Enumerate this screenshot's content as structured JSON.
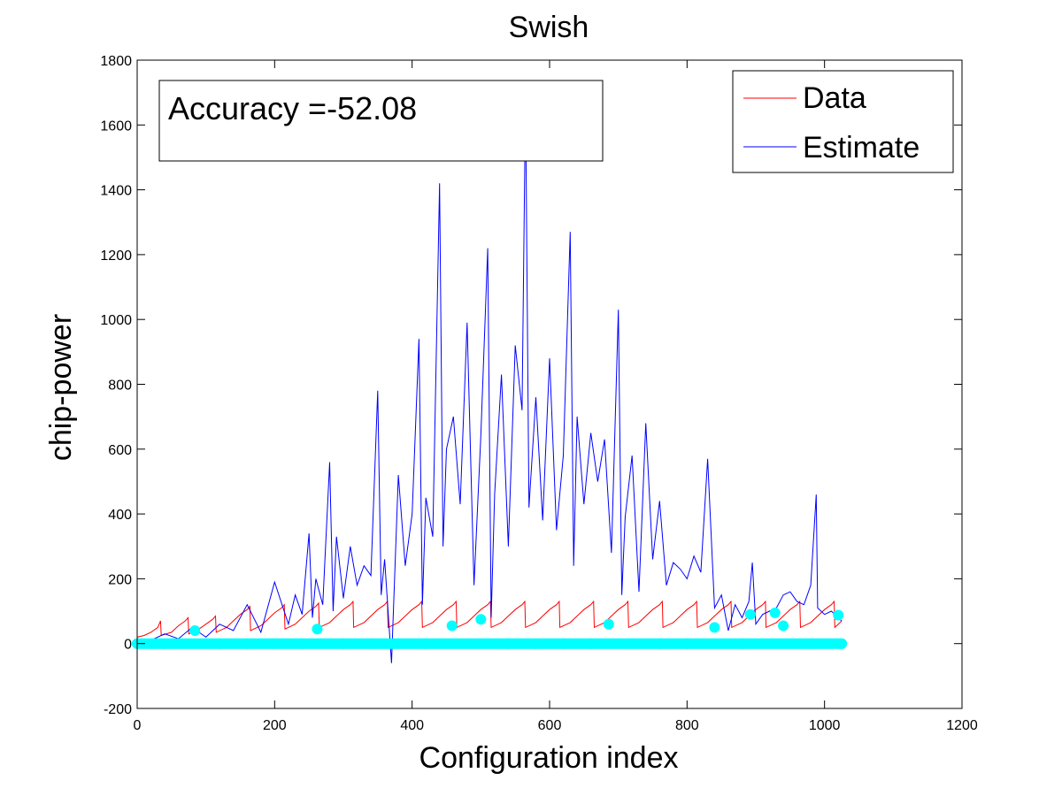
{
  "chart_data": {
    "type": "line",
    "title": "Swish",
    "xlabel": "Configuration index",
    "ylabel": "chip-power",
    "xlim": [
      0,
      1200
    ],
    "ylim": [
      -200,
      1800
    ],
    "xticks": [
      0,
      200,
      400,
      600,
      800,
      1000,
      1200
    ],
    "yticks": [
      -200,
      0,
      200,
      400,
      600,
      800,
      1000,
      1200,
      1400,
      1600,
      1800
    ],
    "grid": false,
    "legend_position": "top-right",
    "annotation": "Accuracy =-52.08",
    "series": [
      {
        "name": "Data",
        "color": "#ff0000",
        "x": [
          0,
          10,
          20,
          30,
          34,
          35,
          50,
          60,
          70,
          74,
          75,
          90,
          100,
          110,
          114,
          115,
          130,
          140,
          150,
          160,
          164,
          165,
          180,
          190,
          200,
          210,
          214,
          215,
          230,
          240,
          250,
          260,
          264,
          265,
          280,
          290,
          300,
          310,
          314,
          315,
          330,
          340,
          350,
          360,
          364,
          365,
          380,
          390,
          400,
          410,
          414,
          415,
          430,
          440,
          450,
          460,
          464,
          465,
          480,
          490,
          500,
          510,
          514,
          515,
          530,
          540,
          550,
          560,
          564,
          565,
          580,
          590,
          600,
          610,
          614,
          615,
          630,
          640,
          650,
          660,
          664,
          665,
          680,
          690,
          700,
          710,
          714,
          715,
          730,
          740,
          750,
          760,
          764,
          765,
          780,
          790,
          800,
          810,
          814,
          815,
          830,
          840,
          850,
          860,
          864,
          865,
          880,
          890,
          900,
          910,
          914,
          915,
          930,
          940,
          950,
          960,
          964,
          965,
          980,
          990,
          1000,
          1010,
          1014,
          1015,
          1020,
          1025
        ],
        "y": [
          20,
          25,
          35,
          50,
          70,
          25,
          35,
          55,
          70,
          80,
          30,
          45,
          60,
          75,
          85,
          35,
          50,
          70,
          90,
          105,
          115,
          40,
          55,
          75,
          95,
          110,
          120,
          45,
          60,
          80,
          100,
          115,
          125,
          50,
          65,
          85,
          105,
          120,
          130,
          50,
          65,
          85,
          105,
          120,
          130,
          50,
          65,
          85,
          105,
          120,
          130,
          50,
          65,
          85,
          105,
          120,
          130,
          50,
          65,
          85,
          105,
          120,
          130,
          50,
          65,
          85,
          105,
          120,
          130,
          50,
          65,
          85,
          105,
          120,
          130,
          50,
          65,
          85,
          105,
          120,
          130,
          50,
          65,
          85,
          105,
          120,
          130,
          50,
          65,
          85,
          105,
          120,
          130,
          50,
          65,
          85,
          105,
          120,
          130,
          50,
          65,
          85,
          105,
          120,
          130,
          50,
          65,
          85,
          105,
          120,
          130,
          50,
          65,
          85,
          105,
          120,
          130,
          50,
          65,
          85,
          105,
          120,
          130,
          50,
          60,
          70
        ]
      },
      {
        "name": "Estimate",
        "color": "#0000ff",
        "x": [
          0,
          20,
          40,
          60,
          80,
          100,
          120,
          140,
          160,
          180,
          200,
          220,
          230,
          240,
          250,
          255,
          260,
          270,
          280,
          285,
          290,
          300,
          310,
          320,
          330,
          340,
          350,
          355,
          360,
          370,
          380,
          390,
          400,
          410,
          415,
          420,
          430,
          440,
          445,
          450,
          460,
          470,
          480,
          490,
          500,
          510,
          515,
          520,
          530,
          540,
          550,
          560,
          565,
          570,
          580,
          590,
          600,
          610,
          620,
          630,
          635,
          640,
          650,
          660,
          670,
          680,
          690,
          700,
          705,
          710,
          720,
          730,
          740,
          750,
          760,
          770,
          780,
          790,
          800,
          810,
          820,
          830,
          840,
          850,
          860,
          870,
          880,
          890,
          895,
          900,
          910,
          920,
          930,
          940,
          950,
          960,
          970,
          980,
          988,
          990,
          1000,
          1010,
          1020,
          1025
        ],
        "y": [
          5,
          10,
          30,
          15,
          50,
          20,
          60,
          40,
          120,
          35,
          190,
          60,
          150,
          90,
          340,
          80,
          200,
          120,
          560,
          100,
          330,
          140,
          300,
          180,
          240,
          210,
          780,
          150,
          260,
          -60,
          520,
          240,
          400,
          940,
          120,
          450,
          330,
          1420,
          300,
          600,
          700,
          430,
          990,
          180,
          640,
          1220,
          80,
          460,
          830,
          300,
          920,
          720,
          1690,
          420,
          760,
          380,
          880,
          350,
          580,
          1270,
          240,
          700,
          430,
          650,
          500,
          630,
          280,
          1030,
          150,
          390,
          580,
          160,
          680,
          260,
          440,
          180,
          250,
          230,
          200,
          270,
          220,
          570,
          110,
          150,
          40,
          120,
          80,
          130,
          250,
          60,
          90,
          100,
          110,
          150,
          160,
          130,
          120,
          180,
          460,
          110,
          90,
          100,
          80,
          70
        ]
      },
      {
        "name": "",
        "color": "#00ffff",
        "marker": "filled-circle",
        "x": [
          0,
          40,
          84,
          120,
          160,
          200,
          240,
          262,
          300,
          340,
          380,
          420,
          458,
          500,
          540,
          580,
          620,
          660,
          686,
          720,
          760,
          800,
          840,
          880,
          892,
          928,
          940,
          980,
          1020,
          1025
        ],
        "y": [
          0,
          0,
          40,
          0,
          0,
          0,
          0,
          45,
          0,
          0,
          0,
          0,
          55,
          75,
          0,
          0,
          0,
          0,
          60,
          0,
          0,
          0,
          50,
          0,
          90,
          95,
          55,
          0,
          88,
          0
        ]
      }
    ]
  }
}
